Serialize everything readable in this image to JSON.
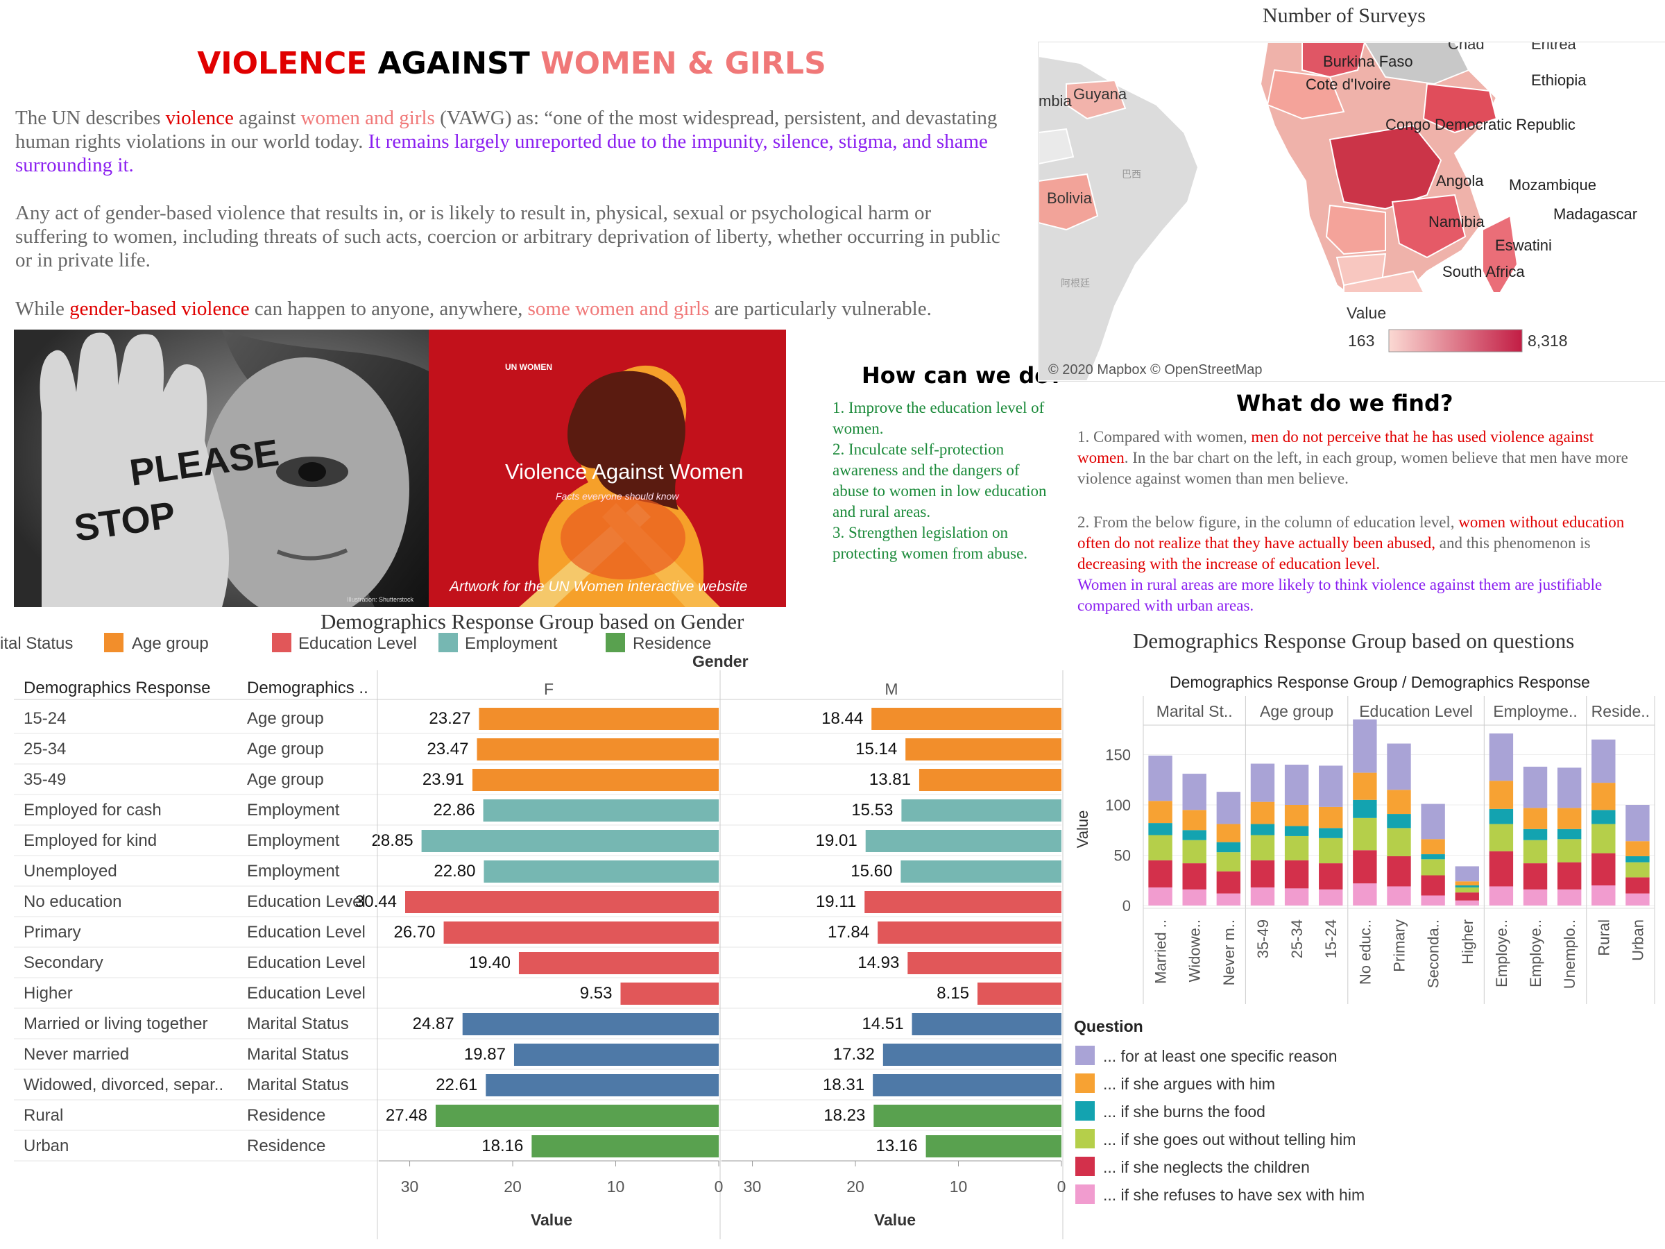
{
  "header": {
    "title_part1": "VIOLENCE",
    "title_part2": " AGAINST ",
    "title_part3": "WOMEN & GIRLS",
    "p1_a": "The UN describes ",
    "p1_b": "violence",
    "p1_c": " against ",
    "p1_d": "women and girls",
    "p1_e": " (VAWG) as: “one of the most widespread, persistent, and devastating human rights violations in our world today. ",
    "p1_f": "It remains largely unreported due to the impunity, silence, stigma, and shame surrounding it.",
    "p2": "Any act of gender-based violence that results in, or is likely to result in, physical, sexual or psychological harm or suffering to women, including threats of such acts, coercion or arbitrary deprivation of liberty, whether occurring in public or in private life.",
    "p3_a": "While ",
    "p3_b": "gender-based violence",
    "p3_c": " can happen to anyone, anywhere, ",
    "p3_d": "some women and girls",
    "p3_e": " are particularly vulnerable."
  },
  "photos": {
    "please_stop": "PLEASE STOP",
    "photo_credit": "Illustration: Shutterstock",
    "un_logo": "UN WOMEN",
    "poster_title": "Violence Against Women",
    "poster_sub": "Facts everyone should know",
    "poster_caption": "Artwork for the UN Women interactive website"
  },
  "how_can_we_do": {
    "title": "How can we do?",
    "items": [
      "1. Improve the education level of women.",
      "2. Inculcate self-protection awareness and the dangers of abuse to women in low education and rural areas.",
      "3. Strengthen legislation on protecting women from abuse."
    ]
  },
  "what_do_we_find": {
    "title": "What do we find?",
    "f1_a": "1.  Compared with women, ",
    "f1_b": "men do not perceive that he has used violence against women",
    "f1_c": ". In the bar chart on the left, in each group, women believe that men have more violence against women than men believe.",
    "f2_a": "2.  From the below figure, in the column of education level, ",
    "f2_b": "women without education often do not realize that they have actually been abused,",
    "f2_c": " and this phenomenon is ",
    "f2_d": "decreasing with the increase of education level.",
    "f2_e": "Women in rural areas are more likely to think violence against them are justifiable compared with urban areas."
  },
  "map": {
    "title": "Number of Surveys",
    "labels": [
      "Chad",
      "Eritrea",
      "Burkina Faso",
      "Cote d'Ivoire",
      "Ethiopia",
      "Guyana",
      "Congo Democratic Republic",
      "Bolivia",
      "Angola",
      "Mozambique",
      "Madagascar",
      "Namibia",
      "Eswatini",
      "South Africa",
      "巴西",
      "阿根廷",
      "mbia"
    ],
    "legend_title": "Value",
    "legend_min": "163",
    "legend_max": "8,318",
    "attribution": "© 2020 Mapbox © OpenStreetMap",
    "colors": {
      "low": "#fbd9d3",
      "high": "#c21d44"
    }
  },
  "gender_chart": {
    "title": "Demographics Response Group based on Gender",
    "legend_items": [
      "ital Status",
      "Age group",
      "Education Level",
      "Employment",
      "Residence"
    ],
    "col1_header": "Demographics Response",
    "col2_header": "Demographics ..",
    "gender_label": "Gender",
    "axis_label": "Value",
    "ticks": [
      "30",
      "20",
      "10",
      "0"
    ]
  },
  "question_chart": {
    "title": "Demographics Response Group based on questions",
    "header": "Demographics Response Group  /  Demographics Response",
    "y_label": "Value",
    "y_ticks": [
      "150",
      "100",
      "50",
      "0"
    ],
    "legend_title": "Question"
  },
  "chart_data": [
    {
      "type": "bar",
      "title": "Demographics Response Group based on Gender",
      "xlabel": "Value",
      "ylabel": "",
      "xlim": [
        0,
        33
      ],
      "facets": [
        "F",
        "M"
      ],
      "group_colors": {
        "Age group": "#f28e2b",
        "Employment": "#76b7b2",
        "Education Level": "#e15759",
        "Marital Status": "#4e79a7",
        "Residence": "#59a14f"
      },
      "rows": [
        {
          "category": "15-24",
          "group": "Age group",
          "F": 23.27,
          "M": 18.44
        },
        {
          "category": "25-34",
          "group": "Age group",
          "F": 23.47,
          "M": 15.14
        },
        {
          "category": "35-49",
          "group": "Age group",
          "F": 23.91,
          "M": 13.81
        },
        {
          "category": "Employed for cash",
          "group": "Employment",
          "F": 22.86,
          "M": 15.53
        },
        {
          "category": "Employed for kind",
          "group": "Employment",
          "F": 28.85,
          "M": 19.01
        },
        {
          "category": "Unemployed",
          "group": "Employment",
          "F": 22.8,
          "M": 15.6
        },
        {
          "category": "No education",
          "group": "Education Level",
          "F": 30.44,
          "M": 19.11
        },
        {
          "category": "Primary",
          "group": "Education Level",
          "F": 26.7,
          "M": 17.84
        },
        {
          "category": "Secondary",
          "group": "Education Level",
          "F": 19.4,
          "M": 14.93
        },
        {
          "category": "Higher",
          "group": "Education Level",
          "F": 9.53,
          "M": 8.15
        },
        {
          "category": "Married or living together",
          "group": "Marital Status",
          "F": 24.87,
          "M": 14.51
        },
        {
          "category": "Never married",
          "group": "Marital Status",
          "F": 19.87,
          "M": 17.32
        },
        {
          "category": "Widowed, divorced, separ..",
          "group": "Marital Status",
          "F": 22.61,
          "M": 18.31
        },
        {
          "category": "Rural",
          "group": "Residence",
          "F": 27.48,
          "M": 18.23
        },
        {
          "category": "Urban",
          "group": "Residence",
          "F": 18.16,
          "M": 13.16
        }
      ]
    },
    {
      "type": "bar",
      "stacked": true,
      "title": "Demographics Response Group based on questions",
      "ylabel": "Value",
      "ylim": [
        0,
        180
      ],
      "groups": [
        {
          "name": "Marital St..",
          "categories": [
            "Married ..",
            "Widowe..",
            "Never m.."
          ]
        },
        {
          "name": "Age group",
          "categories": [
            "35-49",
            "25-34",
            "15-24"
          ]
        },
        {
          "name": "Education Level",
          "categories": [
            "No educ..",
            "Primary",
            "Seconda..",
            "Higher"
          ]
        },
        {
          "name": "Employme..",
          "categories": [
            "Employe..",
            "Employe..",
            "Unemplo.."
          ]
        },
        {
          "name": "Reside..",
          "categories": [
            "Rural",
            "Urban"
          ]
        }
      ],
      "series": [
        {
          "name": "... if she refuses to have sex with him",
          "color": "#f19ccf",
          "values": [
            18,
            16,
            12,
            18,
            17,
            16,
            22,
            19,
            10,
            5,
            19,
            16,
            16,
            20,
            12
          ]
        },
        {
          "name": "... if she neglects the children",
          "color": "#d3304b",
          "values": [
            27,
            26,
            22,
            27,
            28,
            26,
            33,
            30,
            20,
            8,
            35,
            26,
            27,
            32,
            16
          ]
        },
        {
          "name": "... if she goes out without telling him",
          "color": "#b5cf4a",
          "values": [
            25,
            23,
            19,
            25,
            24,
            25,
            32,
            28,
            16,
            5,
            27,
            23,
            23,
            29,
            15
          ]
        },
        {
          "name": "... if she burns the food",
          "color": "#13a3b0",
          "values": [
            12,
            10,
            10,
            11,
            10,
            10,
            18,
            14,
            5,
            2,
            15,
            11,
            10,
            14,
            6
          ]
        },
        {
          "name": "... if she argues with him",
          "color": "#f7a233",
          "values": [
            22,
            20,
            18,
            22,
            21,
            21,
            27,
            24,
            15,
            4,
            28,
            21,
            21,
            27,
            15
          ]
        },
        {
          "name": "... for at least one specific reason",
          "color": "#a9a3d6",
          "values": [
            45,
            36,
            32,
            38,
            40,
            41,
            53,
            46,
            35,
            15,
            47,
            41,
            40,
            43,
            36
          ]
        }
      ]
    }
  ]
}
